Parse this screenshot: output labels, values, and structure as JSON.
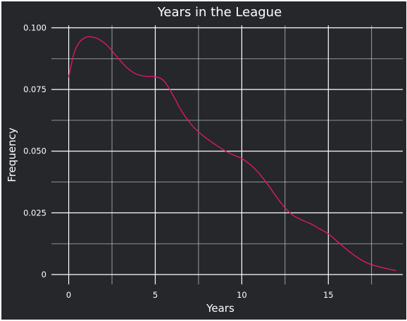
{
  "chart_data": {
    "type": "line",
    "title": "Years in the League",
    "xlabel": "Years",
    "ylabel": "Frequency",
    "xlim": [
      -1,
      19.3
    ],
    "ylim": [
      -0.004,
      0.101
    ],
    "x_ticks": [
      0,
      5,
      10,
      15
    ],
    "x_tick_labels": [
      "0",
      "5",
      "10",
      "15"
    ],
    "x_minor_ticks": [
      2.5,
      7.5,
      12.5,
      17.5
    ],
    "y_ticks": [
      0,
      0.025,
      0.05,
      0.075,
      0.1
    ],
    "y_tick_labels": [
      "0",
      "0.025",
      "0.050",
      "0.075",
      "0.100"
    ],
    "y_minor_ticks": [
      0.0125,
      0.0375,
      0.0625,
      0.0875
    ],
    "grid": true,
    "colors": {
      "background": "#25272b",
      "line": "#e0176b",
      "grid": "#ffffff",
      "text": "#ffffff"
    },
    "series": [
      {
        "x": [
          0,
          0.3,
          0.6,
          1.0,
          1.3,
          1.7,
          2.2,
          2.7,
          3.2,
          3.6,
          4.0,
          4.5,
          5.0,
          5.5,
          6.0,
          6.5,
          7.0,
          7.5,
          8.0,
          8.5,
          9.0,
          9.5,
          10.0,
          10.5,
          11.0,
          11.5,
          12.0,
          12.5,
          13.0,
          13.5,
          14.0,
          14.5,
          15.0,
          15.5,
          16.0,
          16.5,
          17.0,
          17.5,
          18.0,
          18.5,
          18.9
        ],
        "y": [
          0.08,
          0.0895,
          0.094,
          0.0962,
          0.0963,
          0.0955,
          0.093,
          0.089,
          0.085,
          0.0825,
          0.081,
          0.0803,
          0.0802,
          0.0785,
          0.073,
          0.0665,
          0.0615,
          0.0578,
          0.055,
          0.0525,
          0.0503,
          0.0485,
          0.047,
          0.0445,
          0.041,
          0.0365,
          0.0315,
          0.027,
          0.0238,
          0.022,
          0.0205,
          0.0185,
          0.0165,
          0.0135,
          0.0105,
          0.0078,
          0.0055,
          0.004,
          0.003,
          0.0022,
          0.0016
        ]
      }
    ]
  }
}
